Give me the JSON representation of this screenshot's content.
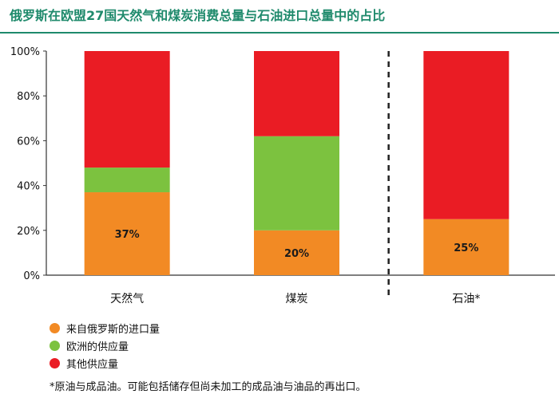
{
  "title": "俄罗斯在欧盟27国天然气和煤炭消费总量与石油进口总量中的占比",
  "colors": {
    "accent": "#1f8a6c",
    "russia": "#f28a24",
    "eu": "#7cc23f",
    "other": "#ea1c24"
  },
  "chart_data": {
    "type": "bar",
    "stacked": true,
    "categories": [
      "天然气",
      "煤炭",
      "石油*"
    ],
    "ylim": [
      0,
      100
    ],
    "yticks": [
      "0%",
      "20%",
      "40%",
      "60%",
      "80%",
      "100%"
    ],
    "series": [
      {
        "name": "来自俄罗斯的进口量",
        "values": [
          37,
          20,
          25
        ],
        "color": "#f28a24",
        "labels": [
          "37%",
          "20%",
          "25%"
        ]
      },
      {
        "name": "欧洲的供应量",
        "values": [
          11,
          42,
          0
        ],
        "color": "#7cc23f"
      },
      {
        "name": "其他供应量",
        "values": [
          52,
          38,
          75
        ],
        "color": "#ea1c24"
      }
    ],
    "divider_after_index": 1,
    "grid": false,
    "legend_position": "bottom-left"
  },
  "legend": [
    {
      "label": "来自俄罗斯的进口量",
      "color": "#f28a24"
    },
    {
      "label": "欧洲的供应量",
      "color": "#7cc23f"
    },
    {
      "label": "其他供应量",
      "color": "#ea1c24"
    }
  ],
  "footnote": "*原油与成品油。可能包括储存但尚未加工的成品油与油品的再出口。"
}
